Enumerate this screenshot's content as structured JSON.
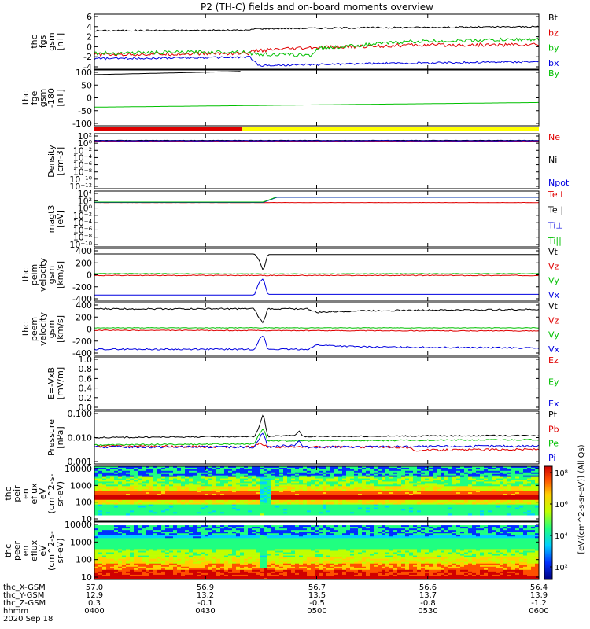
{
  "title": "P2 (TH-C) fields and on-board moments overview",
  "colors": {
    "black": "#000000",
    "red": "#e00000",
    "green": "#00c000",
    "blue": "#0000e0",
    "yellow": "#ffff00"
  },
  "chart_data": [
    {
      "type": "line",
      "panel": "fgs",
      "ylabel": [
        "thc",
        "fgs",
        "gsm",
        "[nT]"
      ],
      "yticks": [
        "6",
        "4",
        "2",
        "0",
        "-2",
        "-4"
      ],
      "ylim": [
        -4.5,
        6.5
      ],
      "series": [
        {
          "name": "Bt",
          "color": "#000000",
          "points": [
            [
              0,
              3.2
            ],
            [
              0.35,
              3.3
            ],
            [
              0.36,
              3.6
            ],
            [
              0.6,
              3.8
            ],
            [
              1,
              4.0
            ]
          ],
          "noise": 0.15
        },
        {
          "name": "bz",
          "color": "#e00000",
          "points": [
            [
              0,
              -1.6
            ],
            [
              0.35,
              -1.3
            ],
            [
              0.36,
              -0.8
            ],
            [
              0.5,
              -0.2
            ],
            [
              0.7,
              0.3
            ],
            [
              1,
              0.4
            ]
          ],
          "noise": 0.35
        },
        {
          "name": "by",
          "color": "#00c000",
          "points": [
            [
              0,
              -1.3
            ],
            [
              0.34,
              -1.0
            ],
            [
              0.36,
              -1.5
            ],
            [
              0.49,
              -1.7
            ],
            [
              0.5,
              -0.4
            ],
            [
              0.7,
              1.0
            ],
            [
              1,
              1.5
            ]
          ],
          "noise": 0.35
        },
        {
          "name": "bx",
          "color": "#0000e0",
          "points": [
            [
              0,
              -2.4
            ],
            [
              0.35,
              -2.1
            ],
            [
              0.37,
              -3.8
            ],
            [
              0.6,
              -3.4
            ],
            [
              1,
              -3.0
            ]
          ],
          "noise": 0.2
        }
      ]
    },
    {
      "type": "line",
      "panel": "fge",
      "ylabel": [
        "thc",
        "fge",
        "gsm",
        "-180",
        "[nT]"
      ],
      "yticks": [
        "100",
        "50",
        "0",
        "-50",
        "-100"
      ],
      "ylim": [
        -130,
        110
      ],
      "series": [
        {
          "name": "By",
          "color": "#00c000",
          "points": [
            [
              0,
              -50
            ],
            [
              1,
              -30
            ]
          ],
          "noise": 0
        },
        {
          "name": "",
          "color": "#000000",
          "points": [
            [
              0,
              90
            ],
            [
              0.33,
              104
            ]
          ],
          "noise": 0
        }
      ]
    },
    {
      "type": "line",
      "panel": "density",
      "ylabel": [
        "Density",
        "[cm-3]"
      ],
      "yticks": [
        "10²",
        "10⁰",
        "10⁻²",
        "10⁻⁴",
        "10⁻⁶",
        "10⁻⁸",
        "10⁻¹⁰",
        "10⁻¹²"
      ],
      "ylim": [
        -13,
        2.5
      ],
      "series": [
        {
          "name": "Ne",
          "color": "#e00000",
          "points": [
            [
              0,
              0.35
            ],
            [
              1,
              0.35
            ]
          ],
          "noise": 0.05
        },
        {
          "name": "Ni",
          "color": "#000000",
          "points": [
            [
              0,
              0.6
            ],
            [
              1,
              0.6
            ]
          ],
          "noise": 0.05
        },
        {
          "name": "Npot",
          "color": "#0000e0",
          "points": [
            [
              0,
              0.5
            ],
            [
              1,
              0.5
            ]
          ],
          "noise": 0.05
        }
      ]
    },
    {
      "type": "line",
      "panel": "temperature",
      "ylabel": [
        "magt3",
        "[eV]"
      ],
      "yticks": [
        "10⁴",
        "10²",
        "10⁰",
        "10⁻²",
        "10⁻⁴",
        "10⁻⁶",
        "10⁻⁸",
        "10⁻¹⁰"
      ],
      "ylim": [
        -11,
        4.5
      ],
      "series": [
        {
          "name": "Te⊥",
          "color": "#e00000",
          "points": [
            [
              0,
              1.3
            ],
            [
              1,
              1.3
            ]
          ],
          "noise": 0.03
        },
        {
          "name": "Te||",
          "color": "#000000",
          "points": [
            [
              0,
              1.4
            ],
            [
              0.38,
              1.4
            ],
            [
              0.41,
              2.8
            ],
            [
              1,
              2.8
            ]
          ],
          "noise": 0
        },
        {
          "name": "Ti⊥",
          "color": "#0000e0",
          "points": [
            [
              0,
              1.35
            ],
            [
              0.38,
              1.35
            ],
            [
              0.41,
              2.75
            ],
            [
              1,
              2.75
            ]
          ],
          "noise": 0
        },
        {
          "name": "Ti||",
          "color": "#00c000",
          "points": [
            [
              0,
              1.45
            ],
            [
              0.38,
              1.45
            ],
            [
              0.41,
              2.85
            ],
            [
              1,
              2.85
            ]
          ],
          "noise": 0
        }
      ]
    },
    {
      "type": "line",
      "panel": "peim",
      "ylabel": [
        "thc",
        "peim",
        "velocity",
        "gsm",
        "[km/s]"
      ],
      "yticks": [
        "400",
        "200",
        "0",
        "-200",
        "-400"
      ],
      "ylim": [
        -430,
        430
      ],
      "series": [
        {
          "name": "Vt",
          "color": "#000000",
          "points": [
            [
              0,
              340
            ],
            [
              0.36,
              340
            ],
            [
              0.37,
              250
            ],
            [
              0.38,
              60
            ],
            [
              0.39,
              330
            ],
            [
              1,
              330
            ]
          ],
          "noise": 0
        },
        {
          "name": "Vz",
          "color": "#e00000",
          "points": [
            [
              0,
              -10
            ],
            [
              1,
              -10
            ]
          ],
          "noise": 6
        },
        {
          "name": "Vy",
          "color": "#00c000",
          "points": [
            [
              0,
              20
            ],
            [
              0.4,
              15
            ],
            [
              1,
              20
            ]
          ],
          "noise": 4
        },
        {
          "name": "Vx",
          "color": "#0000e0",
          "points": [
            [
              0,
              -330
            ],
            [
              0.36,
              -330
            ],
            [
              0.37,
              -130
            ],
            [
              0.38,
              -60
            ],
            [
              0.39,
              -320
            ],
            [
              1,
              -320
            ]
          ],
          "noise": 0
        }
      ]
    },
    {
      "type": "line",
      "panel": "peem",
      "ylabel": [
        "thc",
        "peem",
        "velocity",
        "gsm",
        "[km/s]"
      ],
      "yticks": [
        "400",
        "200",
        "0",
        "-200",
        "-400"
      ],
      "ylim": [
        -430,
        430
      ],
      "series": [
        {
          "name": "Vt",
          "color": "#000000",
          "points": [
            [
              0,
              330
            ],
            [
              0.36,
              330
            ],
            [
              0.37,
              180
            ],
            [
              0.38,
              100
            ],
            [
              0.39,
              330
            ],
            [
              0.48,
              330
            ],
            [
              0.5,
              270
            ],
            [
              0.6,
              300
            ],
            [
              1,
              320
            ]
          ],
          "noise": 12
        },
        {
          "name": "Vz",
          "color": "#e00000",
          "points": [
            [
              0,
              -20
            ],
            [
              1,
              -30
            ]
          ],
          "noise": 6
        },
        {
          "name": "Vy",
          "color": "#00c000",
          "points": [
            [
              0,
              20
            ],
            [
              1,
              20
            ]
          ],
          "noise": 5
        },
        {
          "name": "Vx",
          "color": "#0000e0",
          "points": [
            [
              0,
              -330
            ],
            [
              0.36,
              -330
            ],
            [
              0.37,
              -180
            ],
            [
              0.38,
              -100
            ],
            [
              0.39,
              -330
            ],
            [
              0.48,
              -330
            ],
            [
              0.5,
              -260
            ],
            [
              0.6,
              -290
            ],
            [
              1,
              -310
            ]
          ],
          "noise": 12
        }
      ]
    },
    {
      "type": "line",
      "panel": "efield",
      "ylabel": [
        "E=-VxB",
        "[mV/m]"
      ],
      "yticks": [
        "1.0",
        "0.8",
        "0.6",
        "0.4",
        "0.2",
        "0.0"
      ],
      "ylim": [
        -0.02,
        1.02
      ],
      "series": [
        {
          "name": "Ez",
          "color": "#e00000",
          "points": [],
          "noise": 0
        },
        {
          "name": "Ey",
          "color": "#00c000",
          "points": [],
          "noise": 0
        },
        {
          "name": "Ex",
          "color": "#0000e0",
          "points": [],
          "noise": 0
        }
      ]
    },
    {
      "type": "line",
      "panel": "pressure",
      "ylabel": [
        "Pressure",
        "[nPa]"
      ],
      "yticks": [
        "0.100",
        "0.010",
        "0.001"
      ],
      "ylim": [
        -3.1,
        -0.6
      ],
      "series": [
        {
          "name": "Pt",
          "color": "#000000",
          "points": [
            [
              0,
              -1.85
            ],
            [
              0.36,
              -1.8
            ],
            [
              0.37,
              -1.4
            ],
            [
              0.38,
              -0.7
            ],
            [
              0.39,
              -1.8
            ],
            [
              0.45,
              -1.75
            ],
            [
              0.46,
              -1.55
            ],
            [
              0.47,
              -1.8
            ],
            [
              1,
              -1.75
            ]
          ],
          "noise": 0.03
        },
        {
          "name": "Pb",
          "color": "#e00000",
          "points": [
            [
              0,
              -2.25
            ],
            [
              0.36,
              -2.3
            ],
            [
              0.37,
              -2.1
            ],
            [
              0.39,
              -2.3
            ],
            [
              0.7,
              -2.3
            ],
            [
              0.72,
              -2.45
            ],
            [
              1,
              -2.4
            ]
          ],
          "noise": 0.05
        },
        {
          "name": "Pe",
          "color": "#00c000",
          "points": [
            [
              0,
              -2.2
            ],
            [
              0.36,
              -2.15
            ],
            [
              0.37,
              -1.7
            ],
            [
              0.38,
              -1.4
            ],
            [
              0.39,
              -2.0
            ],
            [
              0.5,
              -2.0
            ],
            [
              1,
              -1.95
            ]
          ],
          "noise": 0.03
        },
        {
          "name": "Pi",
          "color": "#0000e0",
          "points": [
            [
              0,
              -2.3
            ],
            [
              0.36,
              -2.3
            ],
            [
              0.37,
              -1.9
            ],
            [
              0.38,
              -1.6
            ],
            [
              0.39,
              -2.3
            ],
            [
              0.45,
              -2.2
            ],
            [
              0.46,
              -2.0
            ],
            [
              0.47,
              -2.3
            ],
            [
              1,
              -2.25
            ]
          ],
          "noise": 0.05
        }
      ]
    },
    {
      "type": "heatmap",
      "panel": "peir",
      "ylabel": [
        "thc",
        "peir",
        "en",
        "eflux",
        "eV",
        "(cm^2-s-",
        "sr-eV)"
      ],
      "yticks": [
        "10000",
        "1000",
        "100",
        "10"
      ],
      "ylim": [
        0.7,
        4.3
      ]
    },
    {
      "type": "heatmap",
      "panel": "peer",
      "ylabel": [
        "thc",
        "peer",
        "en",
        "eflux",
        "eV",
        "(cm^2-s-",
        "sr-eV)"
      ],
      "yticks": [
        "10000",
        "1000",
        "100",
        "10"
      ],
      "ylim": [
        0.7,
        4.3
      ]
    }
  ],
  "colorbar": {
    "ticks": [
      "10⁸",
      "10⁶",
      "10⁴",
      "10²"
    ],
    "label": "[eV/(cm^2-s-sr-eV)] (All Qs)"
  },
  "mode_bar": {
    "segments": [
      {
        "from": 0,
        "to": 0.333,
        "color": "#e00000"
      },
      {
        "from": 0.333,
        "to": 1,
        "color": "#ffff00"
      }
    ]
  },
  "xaxis": {
    "rows": [
      {
        "label": "thc_X-GSM",
        "values": [
          "57.0",
          "56.9",
          "56.7",
          "56.6",
          "56.4"
        ]
      },
      {
        "label": "thc_Y-GSM",
        "values": [
          "12.9",
          "13.2",
          "13.5",
          "13.7",
          "13.9"
        ]
      },
      {
        "label": "thc_Z-GSM",
        "values": [
          "0.3",
          "-0.1",
          "-0.5",
          "-0.8",
          "-1.2"
        ]
      },
      {
        "label": "hhmm",
        "values": [
          "0400",
          "0430",
          "0500",
          "0530",
          "0600"
        ]
      }
    ],
    "date": "2020 Sep 18"
  }
}
